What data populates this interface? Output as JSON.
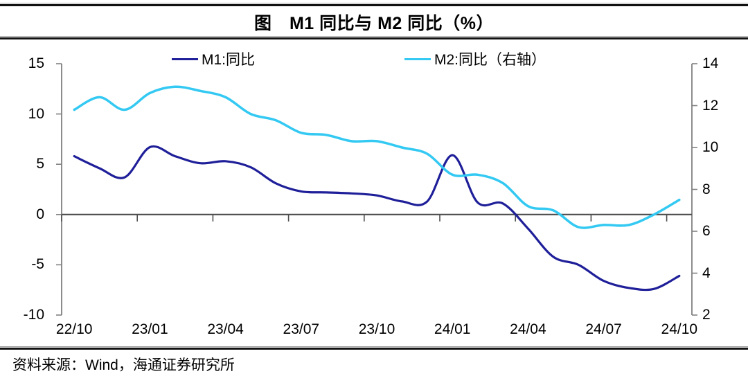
{
  "header": {
    "title": "图　M1 同比与 M2 同比（%）"
  },
  "legend": [
    {
      "label": "M1:同比",
      "color": "#1f1f99"
    },
    {
      "label": "M2:同比（右轴）",
      "color": "#33c9f2"
    }
  ],
  "footer": {
    "source": "资料来源：Wind，海通证券研究所"
  },
  "colors": {
    "m1_line": "#1f1f99",
    "m2_line": "#33c9f2",
    "axis": "#808080",
    "zero_line": "#4d4d4d",
    "text": "#000000"
  },
  "chart_data": {
    "type": "line",
    "title": "图 M1 同比与 M2 同比（%）",
    "categories": [
      "22/10",
      "22/11",
      "22/12",
      "23/01",
      "23/02",
      "23/03",
      "23/04",
      "23/05",
      "23/06",
      "23/07",
      "23/08",
      "23/09",
      "23/10",
      "23/11",
      "23/12",
      "24/01",
      "24/02",
      "24/03",
      "24/04",
      "24/05",
      "24/06",
      "24/07",
      "24/08",
      "24/09",
      "24/10"
    ],
    "x_tick_labels": [
      "22/10",
      "23/01",
      "23/04",
      "23/07",
      "23/10",
      "24/01",
      "24/04",
      "24/07",
      "24/10"
    ],
    "x_tick_indices": [
      0,
      3,
      6,
      9,
      12,
      15,
      18,
      21,
      24
    ],
    "series": [
      {
        "name": "M1:同比",
        "axis": "left",
        "color": "#1f1f99",
        "values": [
          5.8,
          4.6,
          3.7,
          6.7,
          5.8,
          5.1,
          5.3,
          4.7,
          3.1,
          2.3,
          2.2,
          2.1,
          1.9,
          1.3,
          1.3,
          5.9,
          1.2,
          1.1,
          -1.4,
          -4.2,
          -5.0,
          -6.6,
          -7.3,
          -7.4,
          -6.1
        ]
      },
      {
        "name": "M2:同比（右轴）",
        "axis": "right",
        "color": "#33c9f2",
        "values": [
          11.8,
          12.4,
          11.8,
          12.6,
          12.9,
          12.7,
          12.4,
          11.6,
          11.3,
          10.7,
          10.6,
          10.3,
          10.3,
          10.0,
          9.7,
          8.7,
          8.7,
          8.3,
          7.2,
          7.0,
          6.2,
          6.3,
          6.3,
          6.8,
          7.5
        ]
      }
    ],
    "left_axis": {
      "min": -10,
      "max": 15,
      "tick_values": [
        15,
        10,
        5,
        0,
        -5,
        -10
      ],
      "tick_labels": [
        "15",
        "10",
        "5",
        "0",
        "-5",
        "-10"
      ]
    },
    "right_axis": {
      "min": 2,
      "max": 14,
      "tick_values": [
        14,
        12,
        10,
        8,
        6,
        4,
        2
      ],
      "tick_labels": [
        "14",
        "12",
        "10",
        "8",
        "6",
        "4",
        "2"
      ]
    },
    "grid": false,
    "zero_line": true,
    "legend_position": "top",
    "xlabel": "",
    "ylabel": ""
  }
}
